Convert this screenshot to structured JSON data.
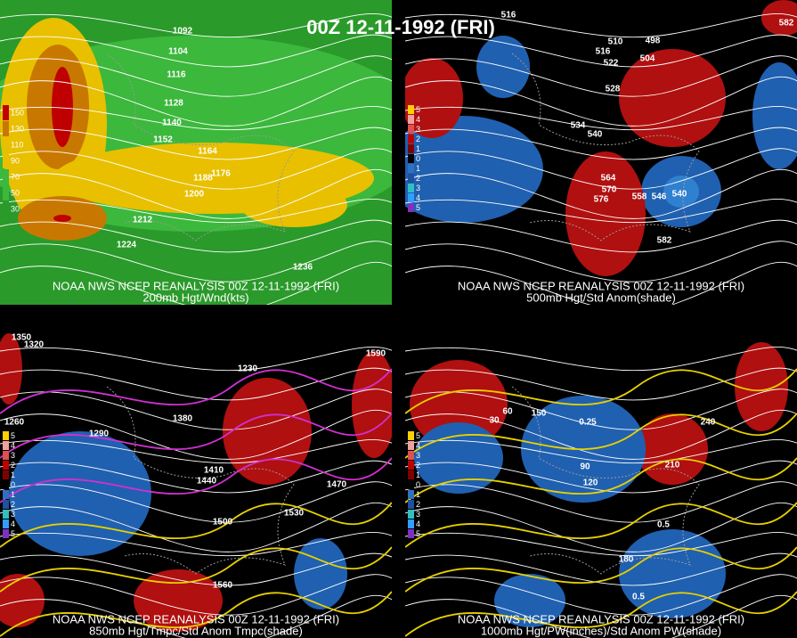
{
  "title": "00Z 12-11-1992 (FRI)",
  "panels": [
    {
      "source": "NOAA NWS NCEP REANALYSIS 00Z 12-11-1992 (FRI)",
      "caption": "200mb Hgt/Wnd(kts)",
      "legend": [
        150,
        130,
        110,
        90,
        70,
        50,
        30
      ],
      "contour_labels": [
        1092,
        1104,
        1116,
        1128,
        1140,
        1152,
        1164,
        1176,
        1188,
        1200,
        1212,
        1224,
        1236
      ]
    },
    {
      "source": "NOAA NWS NCEP REANALYSIS 00Z 12-11-1992 (FRI)",
      "caption": "500mb Hgt/Std Anom(shade)",
      "legend": [
        5,
        4,
        3,
        2,
        1,
        0,
        1,
        2,
        3,
        4,
        5
      ],
      "contour_labels": [
        516,
        510,
        516,
        522,
        504,
        498,
        528,
        534,
        540,
        564,
        570,
        576,
        558,
        546,
        540,
        582,
        582
      ]
    },
    {
      "source": "NOAA NWS NCEP REANALYSIS 00Z 12-11-1992 (FRI)",
      "caption": "850mb Hgt/Tmpc/Std Anom Tmpc(shade)",
      "legend": [
        5,
        4,
        3,
        2,
        1,
        0,
        1,
        2,
        3,
        4,
        5
      ],
      "contour_labels": [
        1350,
        1320,
        1290,
        1260,
        1230,
        1380,
        1410,
        1440,
        1470,
        1500,
        1530,
        1560,
        1590
      ]
    },
    {
      "source": "NOAA NWS NCEP REANALYSIS 00Z 12-11-1992 (FRI)",
      "caption": "1000mb Hgt/PW(inches)/Std Anom PW(shade)",
      "legend": [
        5,
        4,
        3,
        2,
        1,
        0,
        1,
        2,
        3,
        4,
        5
      ],
      "contour_labels": [
        30,
        60,
        90,
        120,
        150,
        180,
        210,
        240,
        0.25,
        0.5,
        0.5
      ]
    }
  ]
}
